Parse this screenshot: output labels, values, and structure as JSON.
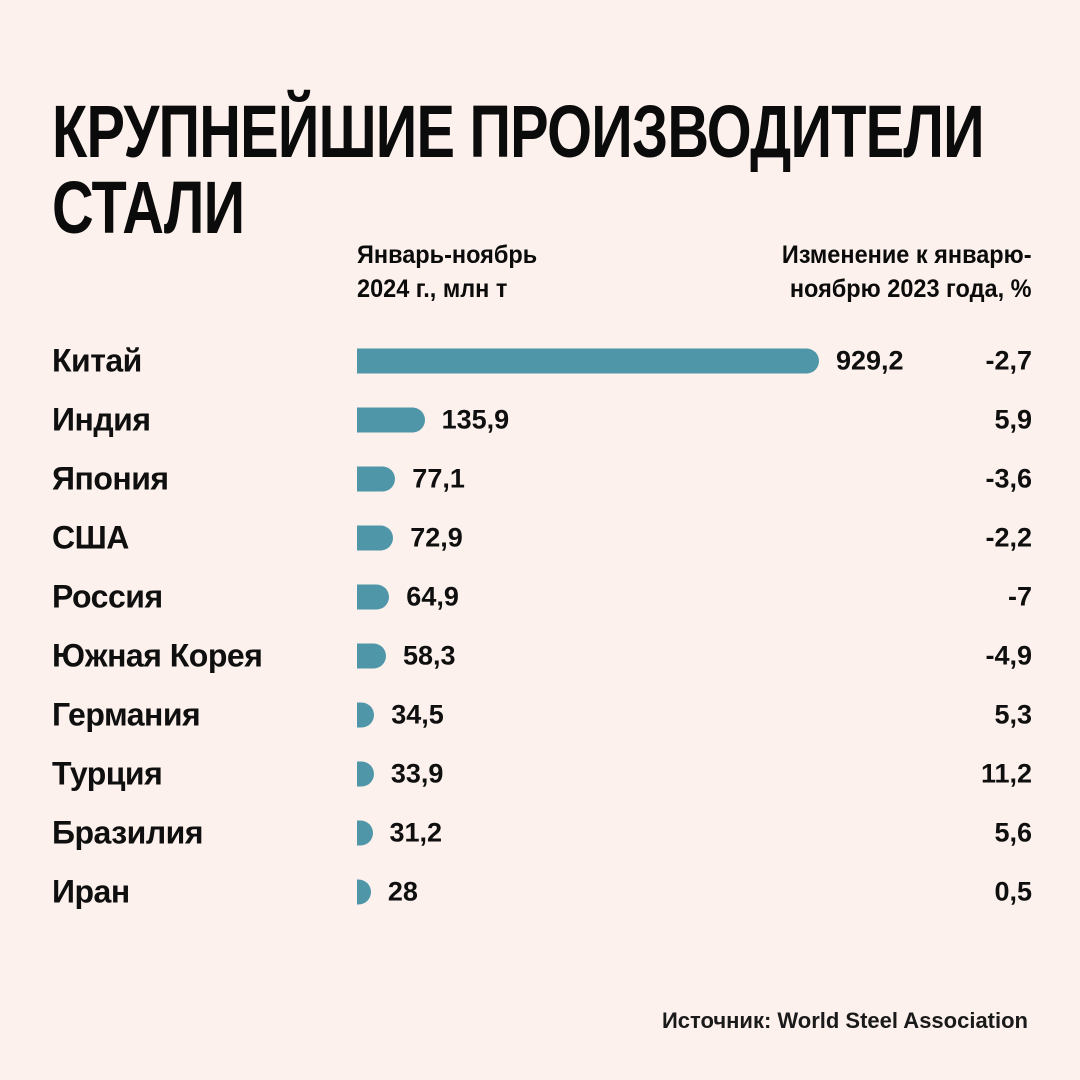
{
  "theme": {
    "background": "#fcf1ec",
    "text": "#0b0b0b",
    "bar_accent": "#4e96a8"
  },
  "title_lines": [
    "КРУПНЕЙШИЕ ПРОИЗВОДИТЕЛИ",
    "СТАЛИ"
  ],
  "columns": {
    "production_header_lines": [
      "Январь-ноябрь",
      "2024 г., млн т"
    ],
    "change_header_lines": [
      "Изменение к январю-",
      "ноябрю 2023 года, %"
    ]
  },
  "source": "Источник: World Steel Association",
  "chart_data": {
    "type": "bar",
    "orientation": "horizontal",
    "title": "КРУПНЕЙШИЕ ПРОИЗВОДИТЕЛИ СТАЛИ",
    "xlabel": "Январь-ноябрь 2024 г., млн т",
    "value_range": [
      0,
      929.2
    ],
    "grid": false,
    "legend": false,
    "categories": [
      "Китай",
      "Индия",
      "Япония",
      "США",
      "Россия",
      "Южная Корея",
      "Германия",
      "Турция",
      "Бразилия",
      "Иран"
    ],
    "series": [
      {
        "name": "Январь-ноябрь 2024 г., млн т",
        "values": [
          929.2,
          135.9,
          77.1,
          72.9,
          64.9,
          58.3,
          34.5,
          33.9,
          31.2,
          28
        ]
      },
      {
        "name": "Изменение к январю-ноябрю 2023 года, %",
        "values": [
          -2.7,
          5.9,
          -3.6,
          -2.2,
          -7,
          -4.9,
          5.3,
          11.2,
          5.6,
          0.5
        ]
      }
    ],
    "rows": [
      {
        "country": "Китай",
        "production": 929.2,
        "production_label": "929,2",
        "change": -2.7,
        "change_label": "-2,7"
      },
      {
        "country": "Индия",
        "production": 135.9,
        "production_label": "135,9",
        "change": 5.9,
        "change_label": "5,9"
      },
      {
        "country": "Япония",
        "production": 77.1,
        "production_label": "77,1",
        "change": -3.6,
        "change_label": "-3,6"
      },
      {
        "country": "США",
        "production": 72.9,
        "production_label": "72,9",
        "change": -2.2,
        "change_label": "-2,2"
      },
      {
        "country": "Россия",
        "production": 64.9,
        "production_label": "64,9",
        "change": -7,
        "change_label": "-7"
      },
      {
        "country": "Южная Корея",
        "production": 58.3,
        "production_label": "58,3",
        "change": -4.9,
        "change_label": "-4,9"
      },
      {
        "country": "Германия",
        "production": 34.5,
        "production_label": "34,5",
        "change": 5.3,
        "change_label": "5,3"
      },
      {
        "country": "Турция",
        "production": 33.9,
        "production_label": "33,9",
        "change": 11.2,
        "change_label": "11,2"
      },
      {
        "country": "Бразилия",
        "production": 31.2,
        "production_label": "31,2",
        "change": 5.6,
        "change_label": "5,6"
      },
      {
        "country": "Иран",
        "production": 28,
        "production_label": "28",
        "change": 0.5,
        "change_label": "0,5"
      }
    ]
  }
}
